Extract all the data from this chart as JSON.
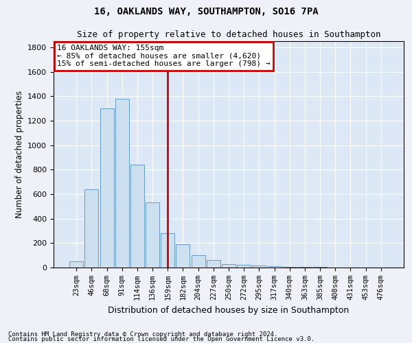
{
  "title1": "16, OAKLANDS WAY, SOUTHAMPTON, SO16 7PA",
  "title2": "Size of property relative to detached houses in Southampton",
  "xlabel": "Distribution of detached houses by size in Southampton",
  "ylabel": "Number of detached properties",
  "footnote1": "Contains HM Land Registry data © Crown copyright and database right 2024.",
  "footnote2": "Contains public sector information licensed under the Open Government Licence v3.0.",
  "bar_labels": [
    "23sqm",
    "46sqm",
    "68sqm",
    "91sqm",
    "114sqm",
    "136sqm",
    "159sqm",
    "182sqm",
    "204sqm",
    "227sqm",
    "250sqm",
    "272sqm",
    "295sqm",
    "317sqm",
    "340sqm",
    "363sqm",
    "385sqm",
    "408sqm",
    "431sqm",
    "453sqm",
    "476sqm"
  ],
  "bar_values": [
    50,
    640,
    1300,
    1380,
    840,
    530,
    280,
    190,
    100,
    60,
    30,
    20,
    15,
    10,
    7,
    5,
    3,
    2,
    1,
    1,
    0
  ],
  "bar_color": "#cce0f0",
  "bar_edge_color": "#6699cc",
  "vline_x_idx": 6,
  "vline_color": "#cc0000",
  "annotation_title": "16 OAKLANDS WAY: 155sqm",
  "annotation_line2": "← 85% of detached houses are smaller (4,620)",
  "annotation_line3": "15% of semi-detached houses are larger (798) →",
  "annotation_box_color": "#cc0000",
  "annotation_bg": "#ffffff",
  "ylim": [
    0,
    1850
  ],
  "yticks": [
    0,
    200,
    400,
    600,
    800,
    1000,
    1200,
    1400,
    1600,
    1800
  ],
  "fig_bg_color": "#eef2f8",
  "plot_bg": "#dce8f5"
}
